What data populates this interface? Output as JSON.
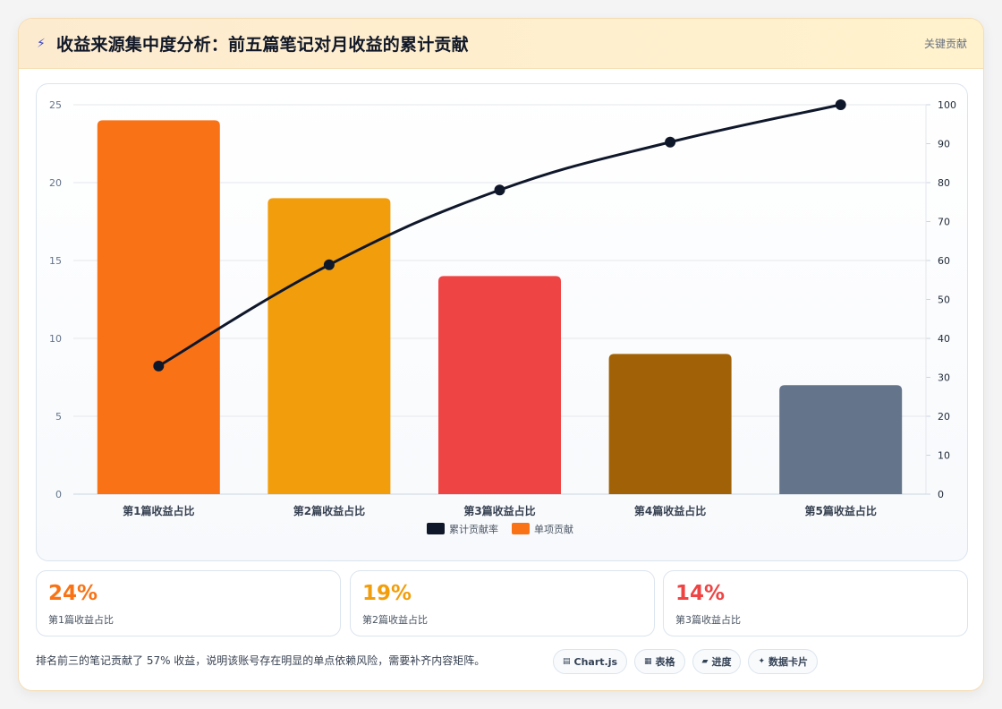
{
  "header": {
    "title": "收益来源集中度分析：前五篇笔记对月收益的累计贡献",
    "tag": "关键贡献",
    "icon": "lightning-icon"
  },
  "chart_data": {
    "type": "bar",
    "categories": [
      "第1篇收益占比",
      "第2篇收益占比",
      "第3篇收益占比",
      "第4篇收益占比",
      "第5篇收益占比"
    ],
    "series": [
      {
        "name": "单项贡献",
        "type": "bar",
        "axis": "left",
        "values": [
          24,
          19,
          14,
          9,
          7
        ],
        "colors": [
          "#f97316",
          "#f29e0c",
          "#ef4444",
          "#a16207",
          "#64748b"
        ]
      },
      {
        "name": "累计贡献率",
        "type": "line",
        "axis": "right",
        "values": [
          32.9,
          58.9,
          78.1,
          90.4,
          100
        ],
        "color": "#0f172a"
      }
    ],
    "ylim": [
      0,
      25
    ],
    "y_ticks": [
      0,
      5,
      10,
      15,
      20,
      25
    ],
    "y2lim": [
      0,
      100
    ],
    "y2_ticks": [
      0,
      10,
      20,
      30,
      40,
      50,
      60,
      70,
      80,
      90,
      100
    ],
    "legend_position": "bottom",
    "grid": true
  },
  "stats": [
    {
      "value": "24%",
      "label": "第1篇收益占比",
      "color": "#f97316"
    },
    {
      "value": "19%",
      "label": "第2篇收益占比",
      "color": "#f29e0c"
    },
    {
      "value": "14%",
      "label": "第3篇收益占比",
      "color": "#ef4444"
    }
  ],
  "footer": {
    "note": "排名前三的笔记贡献了 57% 收益，说明该账号存在明显的单点依赖风险，需要补齐内容矩阵。",
    "pills": [
      {
        "icon": "chart-icon",
        "glyph": "▤",
        "label": "Chart.js"
      },
      {
        "icon": "table-icon",
        "glyph": "▦",
        "label": "表格"
      },
      {
        "icon": "progress-icon",
        "glyph": "▰",
        "label": "进度"
      },
      {
        "icon": "card-icon",
        "glyph": "✦",
        "label": "数据卡片"
      }
    ]
  }
}
